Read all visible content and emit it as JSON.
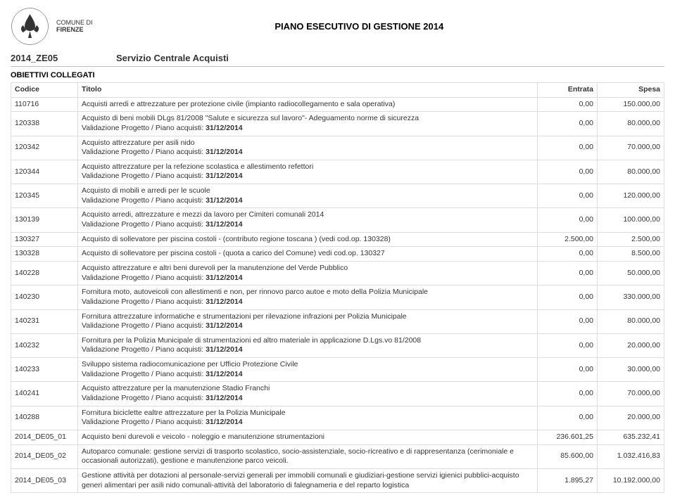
{
  "header": {
    "org_line1": "COMUNE DI",
    "org_line2": "FIRENZE",
    "page_title": "PIANO ESECUTIVO DI GESTIONE 2014"
  },
  "code_row": {
    "code": "2014_ZE05",
    "label": "Servizio Centrale Acquisti"
  },
  "section_title": "OBIETTIVI COLLEGATI",
  "table": {
    "columns": [
      "Codice",
      "Titolo",
      "Entrata",
      "Spesa"
    ],
    "validation_suffix": "Validazione Progetto / Piano acquisti: 31/12/2014",
    "rows": [
      {
        "code": "110716",
        "title": "Acquisti arredi e attrezzature per protezione civile (impianto radiocollegamento e sala operativa)",
        "has_sub": false,
        "entrata": "0,00",
        "spesa": "150.000,00"
      },
      {
        "code": "120338",
        "title": "Acquisto di beni mobili DLgs 81/2008 \"Salute e sicurezza sul lavoro\"- Adeguamento norme di sicurezza",
        "has_sub": true,
        "entrata": "0,00",
        "spesa": "80.000,00"
      },
      {
        "code": "120342",
        "title": "Acquisto attrezzature per asili nido",
        "has_sub": true,
        "entrata": "0,00",
        "spesa": "70.000,00"
      },
      {
        "code": "120344",
        "title": "Acquisto attrezzature per la refezione scolastica e allestimento refettori",
        "has_sub": true,
        "entrata": "0,00",
        "spesa": "80.000,00"
      },
      {
        "code": "120345",
        "title": "Acquisto di mobili e arredi per le scuole",
        "has_sub": true,
        "entrata": "0,00",
        "spesa": "120.000,00"
      },
      {
        "code": "130139",
        "title": "Acquisto arredi, attrezzature e mezzi da lavoro per Cimiteri comunali 2014",
        "has_sub": true,
        "entrata": "0,00",
        "spesa": "100.000,00"
      },
      {
        "code": "130327",
        "title": "Acquisto di sollevatore per piscina costoli - (contributo regione toscana ) (vedi cod.op. 130328)",
        "has_sub": false,
        "entrata": "2.500,00",
        "spesa": "2.500,00"
      },
      {
        "code": "130328",
        "title": "Acquisto di sollevatore per piscina costoli - (quota a carico del Comune) vedi cod.op. 130327",
        "has_sub": false,
        "entrata": "0,00",
        "spesa": "8.500,00"
      },
      {
        "code": "140228",
        "title": "Acquisto attrezzature e altri beni durevoli per la manutenzione del Verde Pubblico",
        "has_sub": true,
        "entrata": "0,00",
        "spesa": "50.000,00"
      },
      {
        "code": "140230",
        "title": "Fornitura moto, autoveicoli con allestimenti e non, per rinnovo parco autoe e moto della Polizia Municipale",
        "has_sub": true,
        "entrata": "0,00",
        "spesa": "330.000,00"
      },
      {
        "code": "140231",
        "title": "Fornitura attrezzature informatiche e strumentazioni per rilevazione infrazioni per Polizia Municipale",
        "has_sub": true,
        "entrata": "0,00",
        "spesa": "80.000,00"
      },
      {
        "code": "140232",
        "title": "Fornitura per la Polizia Municipale di strumentazioni ed altro materiale in applicazione D.Lgs.vo 81/2008",
        "has_sub": true,
        "entrata": "0,00",
        "spesa": "20.000,00"
      },
      {
        "code": "140233",
        "title": "Sviluppo sistema radiocomunicazione per Ufficio Protezione Civile",
        "has_sub": true,
        "entrata": "0,00",
        "spesa": "30.000,00"
      },
      {
        "code": "140241",
        "title": "Acquisto attrezzature per la manutenzione Stadio Franchi",
        "has_sub": true,
        "entrata": "0,00",
        "spesa": "70.000,00"
      },
      {
        "code": "140288",
        "title": "Fornitura biciclette ealtre attrezzature per la Polizia Municipale",
        "has_sub": true,
        "entrata": "0,00",
        "spesa": "20.000,00"
      },
      {
        "code": "2014_DE05_01",
        "title": "Acquisto beni durevoli e veicolo - noleggio e manutenzione strumentazioni",
        "has_sub": false,
        "entrata": "236.601,25",
        "spesa": "635.232,41"
      },
      {
        "code": "2014_DE05_02",
        "title": "Autoparco comunale: gestione servizi di trasporto scolastico, socio-assistenziale, socio-ricreativo e di rappresentanza (cerimoniale e occasionali autorizzati), gestione e manutenzione parco veicoli.",
        "has_sub": false,
        "entrata": "85.600,00",
        "spesa": "1.032.416,83"
      },
      {
        "code": "2014_DE05_03",
        "title": "Gestione attività per dotazioni al personale-servizi generali per immobili comunali e giudiziari-gestione servizi igienici pubblici-acquisto generi alimentari per asili nido comunali-attività del laboratorio di falegnameria e del reparto logistica",
        "has_sub": false,
        "entrata": "1.895,27",
        "spesa": "10.192.000,00"
      }
    ]
  }
}
